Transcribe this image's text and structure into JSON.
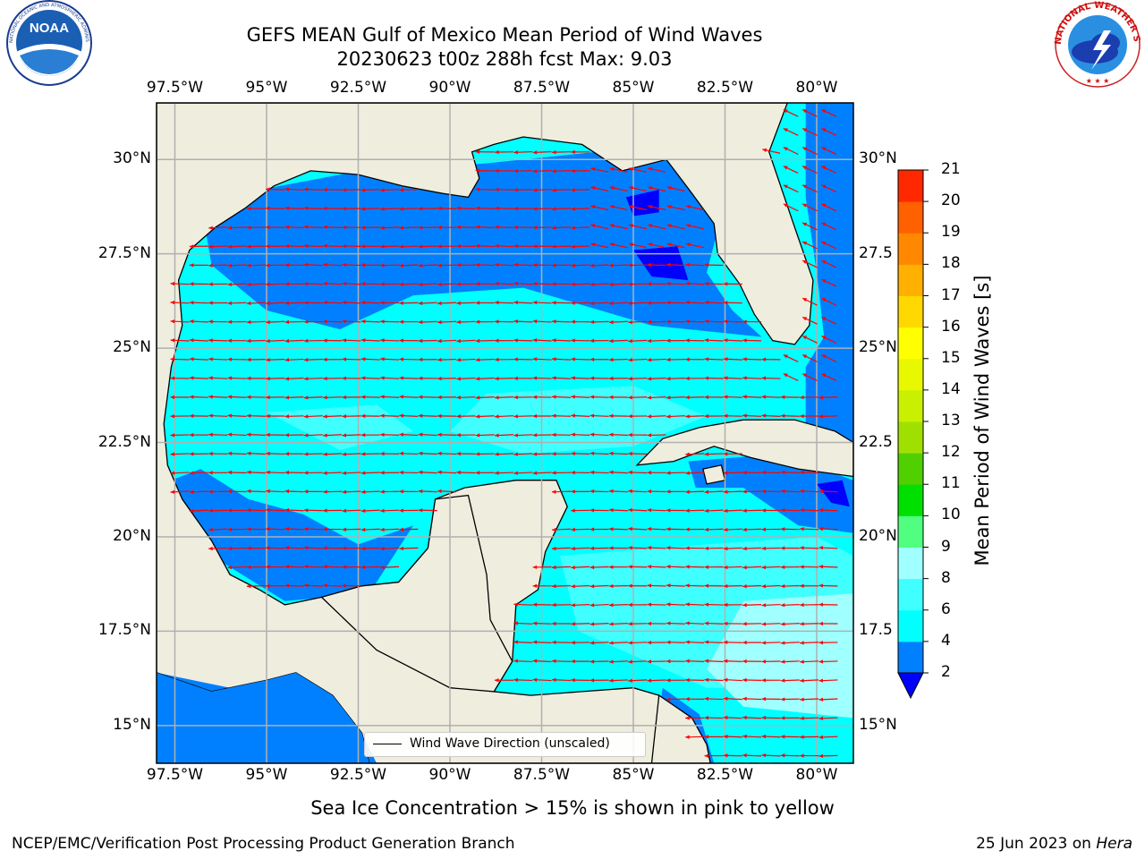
{
  "title": {
    "line1": "GEFS MEAN Gulf of Mexico Mean Period of Wind Waves",
    "line2": "20230623 t00z 288h fcst   Max: 9.03"
  },
  "logos": {
    "left": "NOAA",
    "left_ring": "NATIONAL OCEANIC AND ATMOSPHERIC ADMINISTRATION · U.S. DEPARTMENT OF COMMERCE",
    "right_ring": "NATIONAL WEATHER SERVICE"
  },
  "lon_labels": [
    "97.5°W",
    "95°W",
    "92.5°W",
    "90°W",
    "87.5°W",
    "85°W",
    "82.5°W",
    "80°W"
  ],
  "lat_labels_left": [
    "30°N",
    "27.5°N",
    "25°N",
    "22.5°N",
    "20°N",
    "17.5°N",
    "15°N"
  ],
  "lat_labels_right": [
    "30°N",
    "27.5",
    "25°N",
    "22.5",
    "20°N",
    "17.5",
    "15°N"
  ],
  "map": {
    "lon_range": [
      -98,
      -79
    ],
    "lat_range": [
      14,
      31.5
    ],
    "grid_lons": [
      -97.5,
      -95,
      -92.5,
      -90,
      -87.5,
      -85,
      -82.5,
      -80
    ],
    "grid_lats": [
      15,
      17.5,
      20,
      22.5,
      25,
      27.5,
      30
    ],
    "land_color": "#efedde",
    "grid_color": "#b0b0b0",
    "arrow_color": "#ff0000",
    "predominant_direction": "toward west / west-northwest"
  },
  "colorbar": {
    "title": "Mean Period of Wind Waves [s]",
    "ticks": [
      "2",
      "4",
      "6",
      "8",
      "9",
      "10",
      "11",
      "12",
      "13",
      "14",
      "15",
      "16",
      "17",
      "18",
      "19",
      "20",
      "21"
    ],
    "levels": [
      2,
      4,
      6,
      8,
      9,
      10,
      11,
      12,
      13,
      14,
      15,
      16,
      17,
      18,
      19,
      20,
      21
    ],
    "colors": [
      "#0080ff",
      "#00ffff",
      "#40ffff",
      "#a0ffff",
      "#50ff80",
      "#00e000",
      "#50d000",
      "#a0e000",
      "#c8f000",
      "#e8f800",
      "#ffff00",
      "#ffd800",
      "#ffb000",
      "#ff8800",
      "#ff6000",
      "#ff2800",
      "#ff0000"
    ],
    "under_color": "#0000ff"
  },
  "legend": {
    "label": "Wind Wave Direction (unscaled)"
  },
  "note": "Sea Ice Concentration > 15% is shown in pink to yellow",
  "footer": {
    "left": "NCEP/EMC/Verification Post Processing Product Generation Branch",
    "right_date": "25 Jun 2023 on",
    "right_host": "Hera"
  }
}
